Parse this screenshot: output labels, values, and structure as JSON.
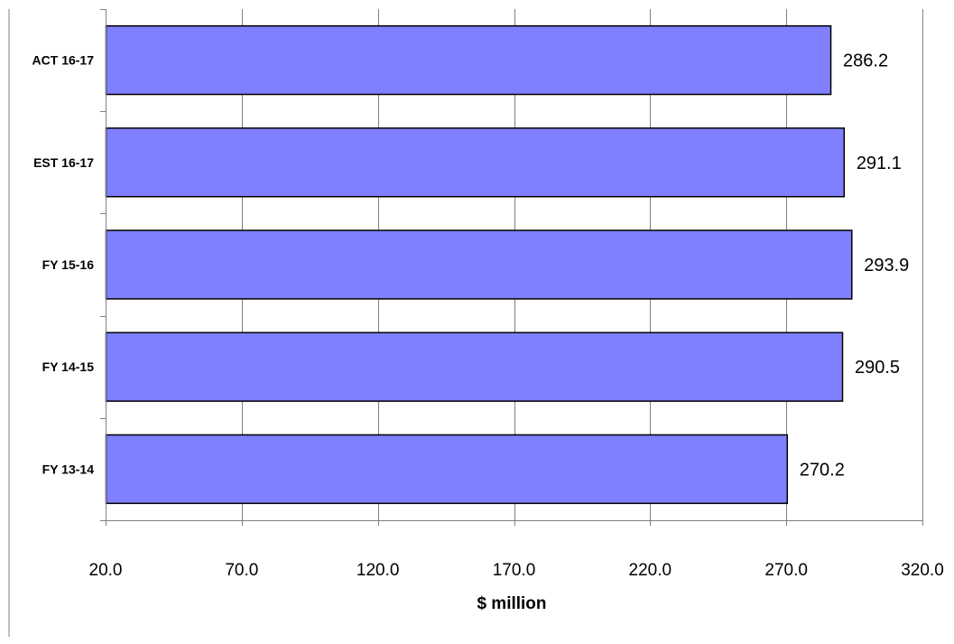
{
  "chart_data": {
    "type": "bar",
    "orientation": "horizontal",
    "categories": [
      "ACT 16-17",
      "EST 16-17",
      "FY 15-16",
      "FY 14-15",
      "FY 13-14"
    ],
    "values": [
      286.2,
      291.1,
      293.9,
      290.5,
      270.2
    ],
    "data_labels": [
      "286.2",
      "291.1",
      "293.9",
      "290.5",
      "270.2"
    ],
    "title": "",
    "xlabel": "$ million",
    "ylabel": "",
    "xlim": [
      20.0,
      320.0
    ],
    "x_ticks": [
      20.0,
      70.0,
      120.0,
      170.0,
      220.0,
      270.0,
      320.0
    ],
    "x_tick_labels": [
      "20.0",
      "70.0",
      "120.0",
      "170.0",
      "220.0",
      "270.0",
      "320.0"
    ],
    "grid": "vertical",
    "legend": "none",
    "colors": {
      "bar_fill": "#8080ff",
      "bar_stroke": "#000000",
      "grid": "#808080",
      "axis": "#808080"
    }
  }
}
